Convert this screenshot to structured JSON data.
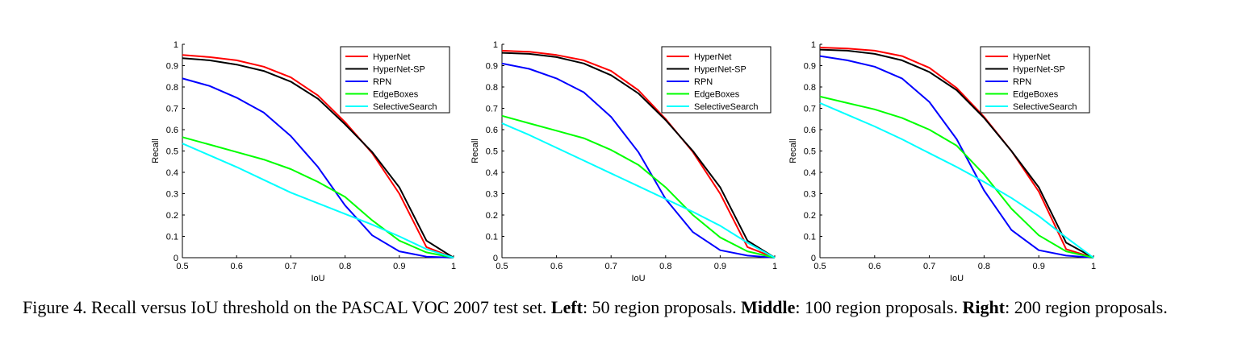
{
  "chart_data": [
    {
      "type": "line",
      "xlabel": "IoU",
      "ylabel": "Recall",
      "xlim": [
        0.5,
        1
      ],
      "ylim": [
        0,
        1
      ],
      "xticks": [
        "0.5",
        "0.6",
        "0.7",
        "0.8",
        "0.9",
        "1"
      ],
      "yticks": [
        "0",
        "0.1",
        "0.2",
        "0.3",
        "0.4",
        "0.5",
        "0.6",
        "0.7",
        "0.8",
        "0.9",
        "1"
      ],
      "grid": false,
      "legend_position": "top-right",
      "x": [
        0.5,
        0.55,
        0.6,
        0.65,
        0.7,
        0.75,
        0.8,
        0.85,
        0.9,
        0.95,
        1.0
      ],
      "series": [
        {
          "name": "HyperNet",
          "color": "#ff0000",
          "values": [
            0.95,
            0.94,
            0.925,
            0.895,
            0.845,
            0.76,
            0.635,
            0.49,
            0.3,
            0.05,
            0.0
          ]
        },
        {
          "name": "HyperNet-SP",
          "color": "#000000",
          "values": [
            0.935,
            0.925,
            0.905,
            0.875,
            0.825,
            0.745,
            0.625,
            0.495,
            0.33,
            0.08,
            0.0
          ]
        },
        {
          "name": "RPN",
          "color": "#0000ff",
          "values": [
            0.84,
            0.805,
            0.75,
            0.68,
            0.57,
            0.425,
            0.245,
            0.105,
            0.03,
            0.005,
            0.0
          ]
        },
        {
          "name": "EdgeBoxes",
          "color": "#00ff00",
          "values": [
            0.565,
            0.53,
            0.495,
            0.46,
            0.415,
            0.355,
            0.285,
            0.175,
            0.08,
            0.025,
            0.0
          ]
        },
        {
          "name": "SelectiveSearch",
          "color": "#00ffff",
          "values": [
            0.535,
            0.48,
            0.425,
            0.365,
            0.305,
            0.255,
            0.205,
            0.155,
            0.1,
            0.04,
            0.0
          ]
        }
      ]
    },
    {
      "type": "line",
      "xlabel": "IoU",
      "ylabel": "Recall",
      "xlim": [
        0.5,
        1
      ],
      "ylim": [
        0,
        1
      ],
      "xticks": [
        "0.5",
        "0.6",
        "0.7",
        "0.8",
        "0.9",
        "1"
      ],
      "yticks": [
        "0",
        "0.1",
        "0.2",
        "0.3",
        "0.4",
        "0.5",
        "0.6",
        "0.7",
        "0.8",
        "0.9",
        "1"
      ],
      "grid": false,
      "legend_position": "top-right",
      "x": [
        0.5,
        0.55,
        0.6,
        0.65,
        0.7,
        0.75,
        0.8,
        0.85,
        0.9,
        0.95,
        1.0
      ],
      "series": [
        {
          "name": "HyperNet",
          "color": "#ff0000",
          "values": [
            0.97,
            0.965,
            0.95,
            0.925,
            0.875,
            0.785,
            0.65,
            0.495,
            0.3,
            0.05,
            0.0
          ]
        },
        {
          "name": "HyperNet-SP",
          "color": "#000000",
          "values": [
            0.96,
            0.955,
            0.94,
            0.91,
            0.855,
            0.77,
            0.645,
            0.5,
            0.33,
            0.08,
            0.0
          ]
        },
        {
          "name": "RPN",
          "color": "#0000ff",
          "values": [
            0.91,
            0.885,
            0.84,
            0.775,
            0.66,
            0.495,
            0.275,
            0.12,
            0.035,
            0.01,
            0.0
          ]
        },
        {
          "name": "EdgeBoxes",
          "color": "#00ff00",
          "values": [
            0.665,
            0.63,
            0.595,
            0.56,
            0.505,
            0.435,
            0.33,
            0.2,
            0.095,
            0.03,
            0.0
          ]
        },
        {
          "name": "SelectiveSearch",
          "color": "#00ffff",
          "values": [
            0.63,
            0.575,
            0.515,
            0.455,
            0.395,
            0.335,
            0.275,
            0.215,
            0.15,
            0.07,
            0.0
          ]
        }
      ]
    },
    {
      "type": "line",
      "xlabel": "IoU",
      "ylabel": "Recall",
      "xlim": [
        0.5,
        1
      ],
      "ylim": [
        0,
        1
      ],
      "xticks": [
        "0.5",
        "0.6",
        "0.7",
        "0.8",
        "0.9",
        "1"
      ],
      "yticks": [
        "0",
        "0.1",
        "0.2",
        "0.3",
        "0.4",
        "0.5",
        "0.6",
        "0.7",
        "0.8",
        "0.9",
        "1"
      ],
      "grid": false,
      "legend_position": "top-right",
      "x": [
        0.5,
        0.55,
        0.6,
        0.65,
        0.7,
        0.75,
        0.8,
        0.85,
        0.9,
        0.95,
        1.0
      ],
      "series": [
        {
          "name": "HyperNet",
          "color": "#ff0000",
          "values": [
            0.985,
            0.98,
            0.97,
            0.945,
            0.89,
            0.795,
            0.66,
            0.5,
            0.31,
            0.04,
            0.0
          ]
        },
        {
          "name": "HyperNet-SP",
          "color": "#000000",
          "values": [
            0.975,
            0.97,
            0.955,
            0.925,
            0.87,
            0.785,
            0.655,
            0.5,
            0.33,
            0.07,
            0.0
          ]
        },
        {
          "name": "RPN",
          "color": "#0000ff",
          "values": [
            0.945,
            0.925,
            0.895,
            0.84,
            0.73,
            0.555,
            0.315,
            0.13,
            0.035,
            0.01,
            0.0
          ]
        },
        {
          "name": "EdgeBoxes",
          "color": "#00ff00",
          "values": [
            0.755,
            0.725,
            0.695,
            0.655,
            0.6,
            0.525,
            0.39,
            0.23,
            0.105,
            0.03,
            0.0
          ]
        },
        {
          "name": "SelectiveSearch",
          "color": "#00ffff",
          "values": [
            0.725,
            0.67,
            0.615,
            0.555,
            0.49,
            0.425,
            0.355,
            0.28,
            0.195,
            0.095,
            0.0
          ]
        }
      ]
    }
  ],
  "caption": {
    "figure_label": "Figure 4.",
    "sentence": " Recall versus IoU threshold on the PASCAL VOC 2007 test set. ",
    "left_label": "Left",
    "left_text": ": 50 region proposals. ",
    "middle_label": "Middle",
    "middle_text": ": 100 region proposals. ",
    "right_label": "Right",
    "right_text": ": 200 region proposals."
  }
}
